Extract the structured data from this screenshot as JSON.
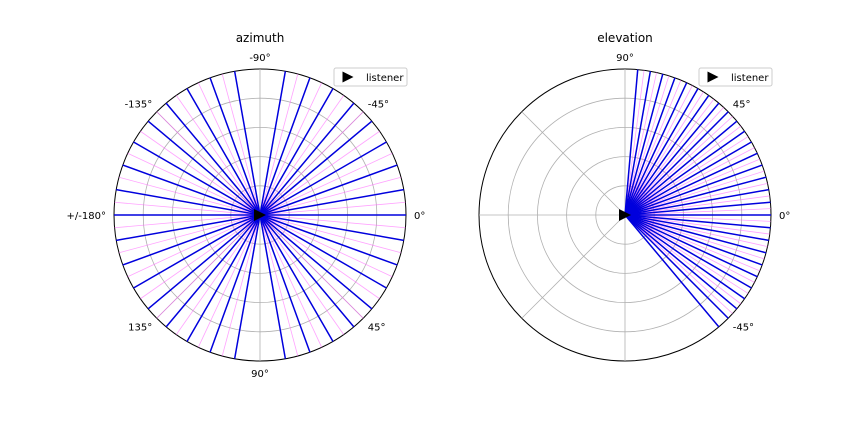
{
  "chart_data": [
    {
      "type": "polar",
      "title": "azimuth",
      "angle_direction": "clockwise",
      "tick_labels": [
        {
          "angle_deg": 0,
          "label": "0°"
        },
        {
          "angle_deg": 45,
          "label": "45°"
        },
        {
          "angle_deg": 90,
          "label": "90°"
        },
        {
          "angle_deg": 135,
          "label": "135°"
        },
        {
          "angle_deg": 180,
          "label": "+/-180°"
        },
        {
          "angle_deg": -135,
          "label": "-135°"
        },
        {
          "angle_deg": -90,
          "label": "-90°"
        },
        {
          "angle_deg": -45,
          "label": "-45°"
        }
      ],
      "radial_grid_fractions": [
        0.2,
        0.4,
        0.6,
        0.8,
        1.0
      ],
      "angular_grid_deg": [
        0,
        45,
        90,
        135,
        180,
        225,
        270,
        315
      ],
      "blue_rays_deg": [
        -80,
        -70,
        -60,
        -50,
        -40,
        -30,
        -20,
        -10,
        0,
        10,
        20,
        30,
        40,
        50,
        60,
        70,
        80,
        100,
        110,
        120,
        130,
        140,
        150,
        160,
        170,
        180,
        190,
        200,
        210,
        220,
        230,
        240,
        250,
        260
      ],
      "magenta_rays_deg": [
        -75,
        -65,
        -55,
        -45,
        -35,
        -25,
        -15,
        -5,
        5,
        15,
        25,
        35,
        45,
        55,
        65,
        75,
        105,
        115,
        125,
        135,
        145,
        155,
        165,
        175,
        185,
        195,
        205,
        215,
        225,
        235,
        245,
        255
      ],
      "marker": "triangle-right",
      "legend": {
        "label": "listener",
        "placement": "top-right"
      },
      "colors": {
        "blue": "#0000dd",
        "magenta": "#ff66ff",
        "grid": "#b0b0b0",
        "marker": "#000000"
      }
    },
    {
      "type": "polar",
      "title": "elevation",
      "angle_direction": "counterclockwise",
      "tick_labels": [
        {
          "angle_deg": 0,
          "label": "0°"
        },
        {
          "angle_deg": 45,
          "label": "45°"
        },
        {
          "angle_deg": 90,
          "label": "90°"
        },
        {
          "angle_deg": -45,
          "label": "-45°"
        }
      ],
      "radial_grid_fractions": [
        0.2,
        0.4,
        0.6,
        0.8,
        1.0
      ],
      "angular_grid_deg": [
        0,
        45,
        90,
        135,
        180,
        225,
        270,
        315
      ],
      "blue_rays_deg": [
        -50,
        -45,
        -40,
        -35,
        -30,
        -25,
        -20,
        -15,
        -10,
        -5,
        0,
        5,
        10,
        15,
        20,
        25,
        30,
        35,
        40,
        45,
        50,
        55,
        60,
        65,
        70,
        75,
        80,
        85
      ],
      "magenta_rays_deg": [
        -42.5,
        -37.5,
        -32.5,
        -27.5,
        -22.5,
        -17.5,
        -12.5,
        -7.5,
        -2.5,
        2.5,
        7.5,
        12.5,
        17.5,
        22.5,
        27.5,
        32.5,
        37.5,
        42.5,
        47.5,
        52.5,
        57.5,
        62.5,
        67.5,
        72.5,
        77.5,
        82.5
      ],
      "marker": "triangle-right",
      "legend": {
        "label": "listener",
        "placement": "top-right"
      },
      "colors": {
        "blue": "#0000dd",
        "magenta": "#ff66ff",
        "grid": "#b0b0b0",
        "marker": "#000000"
      }
    }
  ]
}
